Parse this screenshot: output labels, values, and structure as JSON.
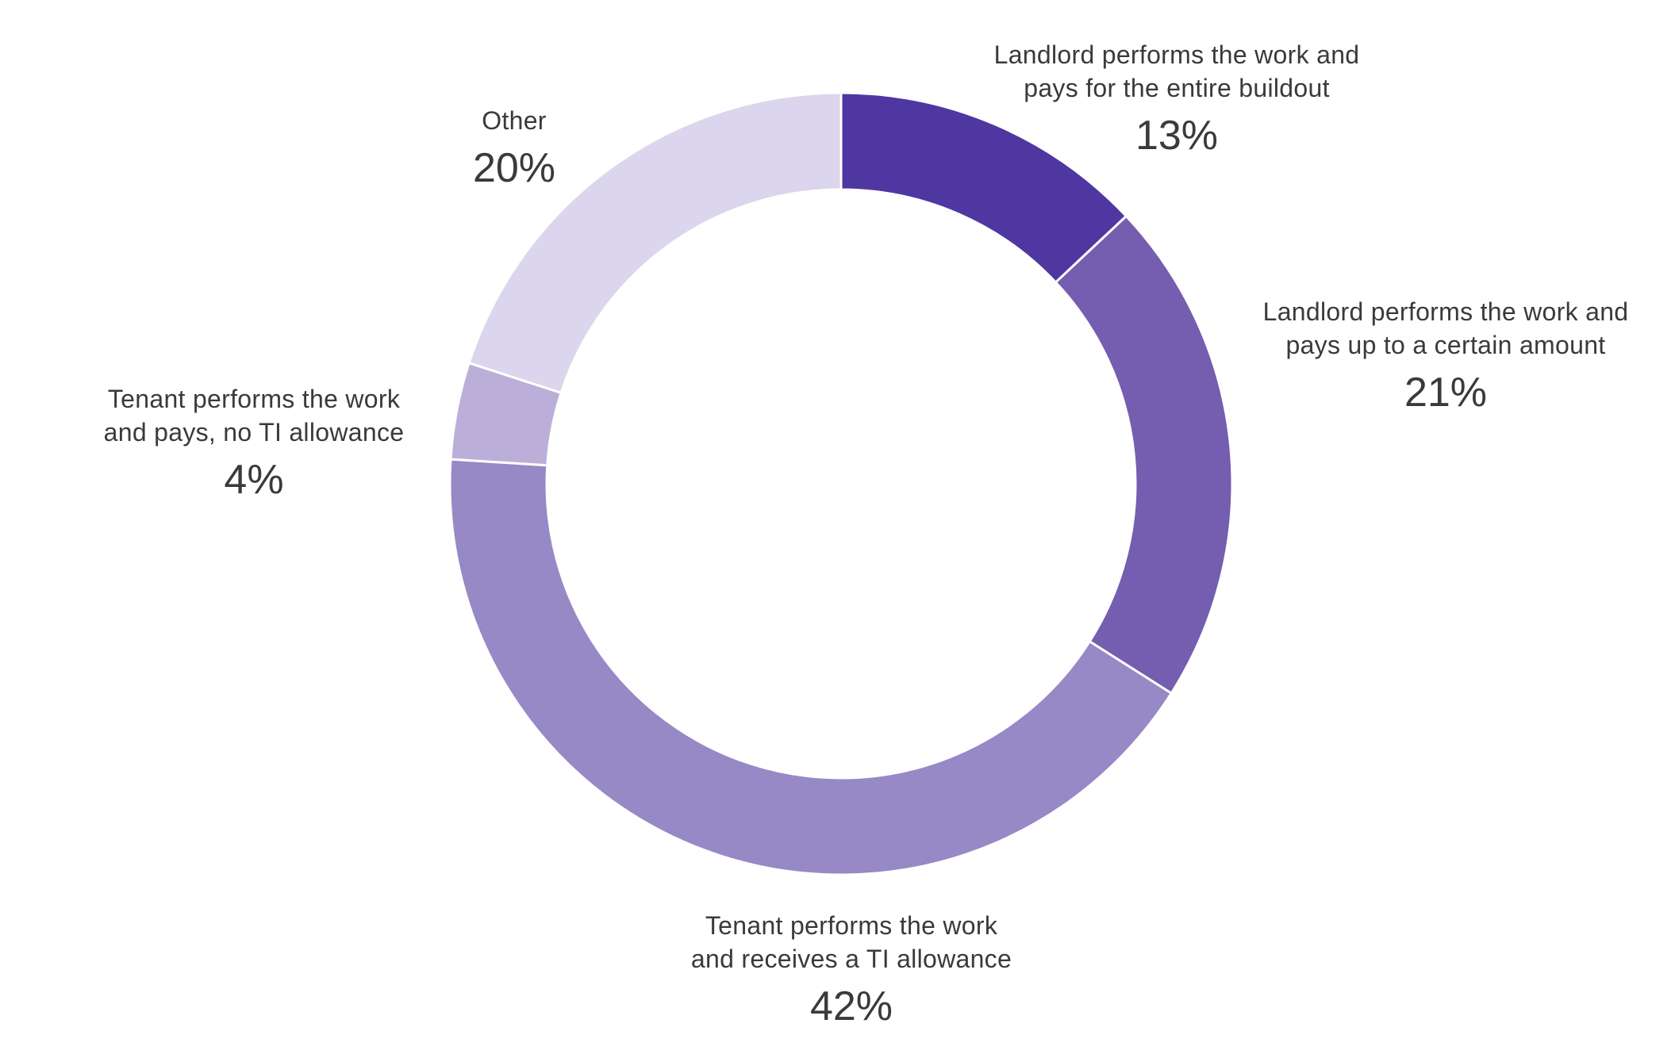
{
  "chart_data": {
    "type": "pie",
    "style": "donut",
    "title": "",
    "slices": [
      {
        "label_lines": [
          "Landlord performs the work and",
          "pays for the entire buildout"
        ],
        "value": 13,
        "value_label": "13%",
        "color": "#4f37a2"
      },
      {
        "label_lines": [
          "Landlord performs the work and",
          "pays up to a certain amount"
        ],
        "value": 21,
        "value_label": "21%",
        "color": "#755db0"
      },
      {
        "label_lines": [
          "Tenant performs the work",
          "and receives a TI allowance"
        ],
        "value": 42,
        "value_label": "42%",
        "color": "#9689c6"
      },
      {
        "label_lines": [
          "Tenant performs the work",
          "and pays, no TI allowance"
        ],
        "value": 4,
        "value_label": "4%",
        "color": "#bbafd9"
      },
      {
        "label_lines": [
          "Other"
        ],
        "value": 20,
        "value_label": "20%",
        "color": "#dbd6ed"
      }
    ]
  }
}
